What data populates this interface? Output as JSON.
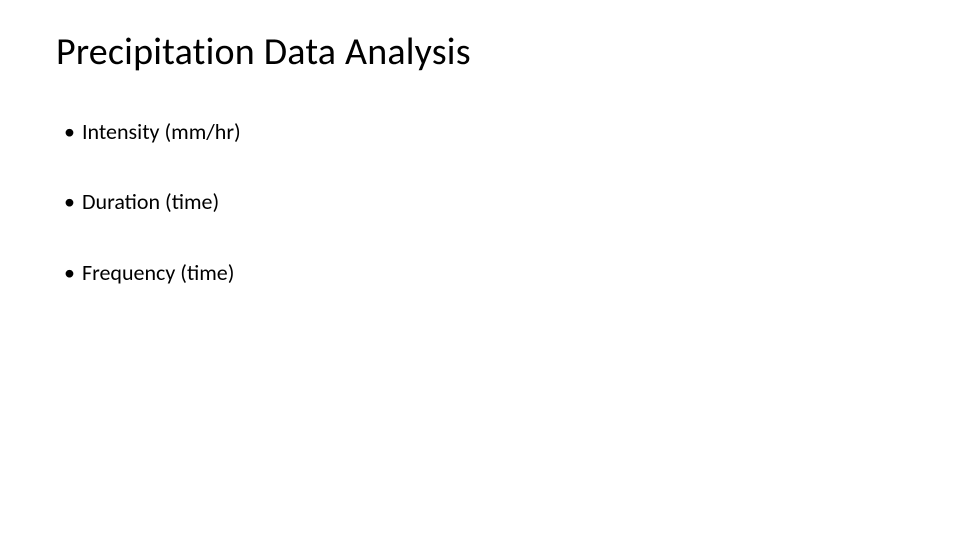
{
  "slide": {
    "title": "Precipitation Data Analysis",
    "bullets": [
      "Intensity (mm/hr)",
      "Duration (time)",
      "Frequency (time)"
    ],
    "background_color": "#ffffff",
    "text_color": "#000000",
    "title_fontsize": 38,
    "bullet_fontsize": 22,
    "font_family": "Calibri"
  }
}
